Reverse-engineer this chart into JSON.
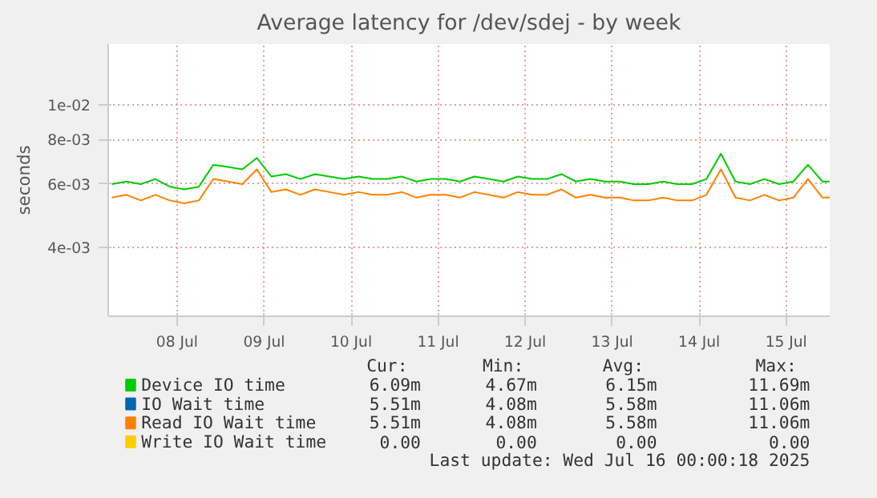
{
  "chart_data": {
    "type": "line",
    "title": "Average latency for /dev/sdej - by week",
    "ylabel": "seconds",
    "x": [
      "2025-07-07T18:00",
      "2025-07-07T22:00",
      "2025-07-08T02:00",
      "2025-07-08T06:00",
      "2025-07-08T10:00",
      "2025-07-08T14:00",
      "2025-07-08T18:00",
      "2025-07-08T22:00",
      "2025-07-09T02:00",
      "2025-07-09T06:00",
      "2025-07-09T10:00",
      "2025-07-09T14:00",
      "2025-07-09T18:00",
      "2025-07-09T22:00",
      "2025-07-10T02:00",
      "2025-07-10T06:00",
      "2025-07-10T10:00",
      "2025-07-10T14:00",
      "2025-07-10T18:00",
      "2025-07-10T22:00",
      "2025-07-11T02:00",
      "2025-07-11T06:00",
      "2025-07-11T10:00",
      "2025-07-11T14:00",
      "2025-07-11T18:00",
      "2025-07-11T22:00",
      "2025-07-12T02:00",
      "2025-07-12T06:00",
      "2025-07-12T10:00",
      "2025-07-12T14:00",
      "2025-07-12T18:00",
      "2025-07-12T22:00",
      "2025-07-13T02:00",
      "2025-07-13T06:00",
      "2025-07-13T10:00",
      "2025-07-13T14:00",
      "2025-07-13T18:00",
      "2025-07-13T22:00",
      "2025-07-14T02:00",
      "2025-07-14T06:00",
      "2025-07-14T10:00",
      "2025-07-14T14:00",
      "2025-07-14T18:00",
      "2025-07-14T22:00",
      "2025-07-15T02:00",
      "2025-07-15T06:00",
      "2025-07-15T10:00",
      "2025-07-15T14:00",
      "2025-07-15T18:00",
      "2025-07-15T22:00",
      "2025-07-16T00:00"
    ],
    "series": [
      {
        "name": "Device IO time",
        "color": "#00cc00",
        "values": [
          0.006,
          0.0061,
          0.006,
          0.0062,
          0.0059,
          0.0058,
          0.0059,
          0.0068,
          0.0067,
          0.0066,
          0.0071,
          0.0063,
          0.0064,
          0.0062,
          0.0064,
          0.0063,
          0.0062,
          0.0063,
          0.0062,
          0.0062,
          0.0063,
          0.0061,
          0.0062,
          0.0062,
          0.0061,
          0.0063,
          0.0062,
          0.0061,
          0.0063,
          0.0062,
          0.0062,
          0.0064,
          0.0061,
          0.0062,
          0.0061,
          0.0061,
          0.006,
          0.006,
          0.0061,
          0.006,
          0.006,
          0.0062,
          0.0073,
          0.0061,
          0.006,
          0.0062,
          0.006,
          0.0061,
          0.0068,
          0.0061,
          0.0061
        ]
      },
      {
        "name": "IO Wait time",
        "color": "#0066b3",
        "values": [
          null,
          null,
          null,
          null,
          null,
          null,
          null,
          null,
          null,
          null,
          null,
          null,
          null,
          null,
          null,
          null,
          null,
          null,
          null,
          null,
          null,
          null,
          null,
          null,
          null,
          null,
          null,
          null,
          null,
          null,
          null,
          null,
          null,
          null,
          null,
          null,
          null,
          null,
          null,
          null,
          null,
          null,
          null,
          null,
          null,
          null,
          null,
          null,
          null,
          null,
          null
        ]
      },
      {
        "name": "Read IO Wait time",
        "color": "#ff8000",
        "values": [
          0.0055,
          0.0056,
          0.0054,
          0.0056,
          0.0054,
          0.0053,
          0.0054,
          0.0062,
          0.0061,
          0.006,
          0.0066,
          0.0057,
          0.0058,
          0.0056,
          0.0058,
          0.0057,
          0.0056,
          0.0057,
          0.0056,
          0.0056,
          0.0057,
          0.0055,
          0.0056,
          0.0056,
          0.0055,
          0.0057,
          0.0056,
          0.0055,
          0.0057,
          0.0056,
          0.0056,
          0.0058,
          0.0055,
          0.0056,
          0.0055,
          0.0055,
          0.0054,
          0.0054,
          0.0055,
          0.0054,
          0.0054,
          0.0056,
          0.0066,
          0.0055,
          0.0054,
          0.0056,
          0.0054,
          0.0055,
          0.0062,
          0.0055,
          0.0055
        ]
      },
      {
        "name": "Write IO Wait time",
        "color": "#ffcc00",
        "values": [
          null,
          null,
          null,
          null,
          null,
          null,
          null,
          null,
          null,
          null,
          null,
          null,
          null,
          null,
          null,
          null,
          null,
          null,
          null,
          null,
          null,
          null,
          null,
          null,
          null,
          null,
          null,
          null,
          null,
          null,
          null,
          null,
          null,
          null,
          null,
          null,
          null,
          null,
          null,
          null,
          null,
          null,
          null,
          null,
          null,
          null,
          null,
          null,
          null,
          null,
          null
        ]
      }
    ],
    "log": true,
    "ylim": [
      0.00256,
      0.0148
    ],
    "yticks": [
      {
        "value": 0.004,
        "label": "4e-03"
      },
      {
        "value": 0.006,
        "label": "6e-03"
      },
      {
        "value": 0.008,
        "label": "8e-03"
      },
      {
        "value": 0.01,
        "label": "1e-02"
      }
    ],
    "xlim": [
      "2025-07-07T17:00",
      "2025-07-16T00:00"
    ],
    "xticks": [
      {
        "value": "2025-07-08T12:00",
        "label": "08 Jul"
      },
      {
        "value": "2025-07-09T12:00",
        "label": "09 Jul"
      },
      {
        "value": "2025-07-10T12:00",
        "label": "10 Jul"
      },
      {
        "value": "2025-07-11T12:00",
        "label": "11 Jul"
      },
      {
        "value": "2025-07-12T12:00",
        "label": "12 Jul"
      },
      {
        "value": "2025-07-13T12:00",
        "label": "13 Jul"
      },
      {
        "value": "2025-07-14T12:00",
        "label": "14 Jul"
      },
      {
        "value": "2025-07-15T12:00",
        "label": "15 Jul"
      }
    ],
    "grid": true,
    "legend": "bottom",
    "line_style": "solid",
    "annotations": [
      "Cur:",
      "Min:",
      "Avg:",
      "Max:",
      "6.09m",
      "4.67m",
      "6.15m",
      "11.69m",
      "5.51m",
      "4.08m",
      "5.58m",
      "11.06m",
      "5.51m",
      "4.08m",
      "5.58m",
      "11.06m",
      "0.00",
      "0.00",
      "0.00",
      "0.00",
      "Last update: Wed Jul 16 00:00:18 2025"
    ]
  }
}
